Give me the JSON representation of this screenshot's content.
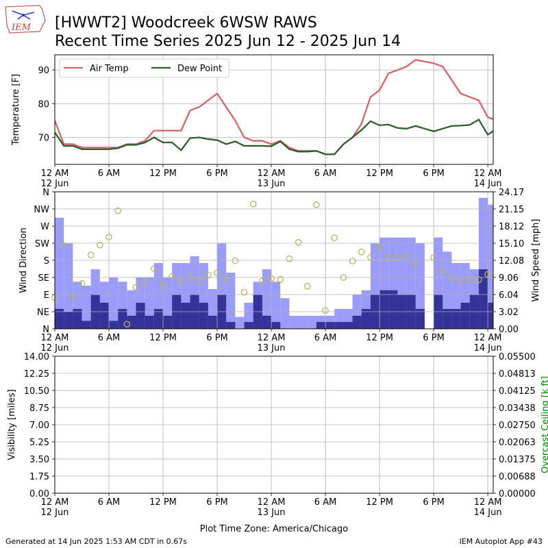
{
  "header": {
    "title_line1": "[HWWT2] Woodcreek 6WSW RAWS",
    "title_line2": "Recent Time Series 2025 Jun 12 - 2025 Jun 14",
    "logo_text": "IEM"
  },
  "footer": {
    "generated": "Generated at 14 Jun 2025 1:53 AM CDT in 0.67s",
    "app": "IEM Autoplot App #43",
    "timezone_label": "Plot Time Zone: America/Chicago"
  },
  "colors": {
    "air_temp": "#d9626b",
    "dew_point": "#2d5e2d",
    "wind_speed": "#9b9bfa",
    "wind_gust_base": "#33339a",
    "wind_dir": "#b5b56a",
    "ceiling_label": "#008000",
    "grid": "#b0b0b0"
  },
  "x_axis": {
    "ticks": [
      {
        "h": 0,
        "line1": "12 AM",
        "line2": "12 Jun"
      },
      {
        "h": 6,
        "line1": "6 AM",
        "line2": ""
      },
      {
        "h": 12,
        "line1": "12 PM",
        "line2": ""
      },
      {
        "h": 18,
        "line1": "6 PM",
        "line2": ""
      },
      {
        "h": 24,
        "line1": "12 AM",
        "line2": "13 Jun"
      },
      {
        "h": 30,
        "line1": "6 AM",
        "line2": ""
      },
      {
        "h": 36,
        "line1": "12 PM",
        "line2": ""
      },
      {
        "h": 42,
        "line1": "6 PM",
        "line2": ""
      },
      {
        "h": 48,
        "line1": "12 AM",
        "line2": "14 Jun"
      }
    ],
    "range_hours": [
      0,
      48.6
    ]
  },
  "chart_data": [
    {
      "type": "line",
      "ylabel": "Temperature [F]",
      "ylim": [
        62,
        94.5
      ],
      "yticks": [
        70,
        80,
        90
      ],
      "grid": true,
      "legend": "top-left",
      "x_unit": "hours since 12 Jun 12 AM",
      "x": [
        0,
        1,
        2,
        3,
        4,
        5,
        6,
        7,
        8,
        9,
        10,
        11,
        12,
        13,
        14,
        15,
        16,
        17,
        18,
        19,
        20,
        21,
        22,
        23,
        24,
        25,
        26,
        27,
        28,
        29,
        30,
        31,
        32,
        33,
        34,
        35,
        36,
        37,
        38,
        39,
        40,
        41,
        42,
        43,
        44,
        45,
        46,
        47,
        48,
        49
      ],
      "series": [
        {
          "name": "Air Temp",
          "values": [
            75,
            68,
            68,
            67,
            67,
            67,
            67,
            67,
            68,
            68,
            69,
            72,
            72,
            72,
            72,
            78,
            79,
            81,
            83,
            79,
            75,
            70,
            69,
            69,
            68,
            69,
            67,
            66,
            66,
            66,
            65,
            65,
            68,
            70,
            74,
            82,
            84,
            89,
            90,
            91,
            93,
            92.5,
            92,
            91,
            87,
            83,
            82,
            81,
            76,
            75
          ]
        },
        {
          "name": "Dew Point",
          "values": [
            71.5,
            67.5,
            67.5,
            66.5,
            66.5,
            66.5,
            66.5,
            66.8,
            67.8,
            67.8,
            68.5,
            70,
            68.5,
            68.5,
            66.2,
            69.8,
            70,
            69.5,
            69.2,
            68,
            68.8,
            67.5,
            67.5,
            67.5,
            67.4,
            68.8,
            66.5,
            65.8,
            65.8,
            66,
            65,
            65,
            68,
            70,
            72.2,
            74.8,
            73.6,
            73.8,
            72.8,
            72.6,
            73.4,
            72.6,
            71.8,
            72.6,
            73.4,
            73.5,
            73.7,
            75.3,
            70.8,
            72.6
          ]
        }
      ]
    },
    {
      "type": "bar",
      "ylabel": "Wind Direction",
      "ylabel_right": "Wind Speed [mph]",
      "grid": true,
      "dir_ticks": [
        "N",
        "NE",
        "E",
        "SE",
        "S",
        "SW",
        "W",
        "NW",
        "N"
      ],
      "dir_ylim": [
        0,
        360
      ],
      "speed_ylim": [
        0,
        24.17
      ],
      "speed_ticks": [
        "0.00",
        "3.02",
        "6.04",
        "9.06",
        "12.08",
        "15.10",
        "18.12",
        "21.15",
        "24.17"
      ],
      "x": [
        0,
        1,
        2,
        3,
        4,
        5,
        6,
        7,
        8,
        9,
        10,
        11,
        12,
        13,
        14,
        15,
        16,
        17,
        18,
        19,
        20,
        21,
        22,
        23,
        24,
        25,
        26,
        27,
        28,
        29,
        30,
        31,
        32,
        33,
        34,
        35,
        36,
        37,
        38,
        39,
        40,
        41,
        42,
        43,
        44,
        45,
        46,
        47,
        48
      ],
      "series": [
        {
          "name": "Wind Speed",
          "values": [
            19.6,
            15.1,
            8.3,
            7.6,
            10.5,
            8.3,
            9.1,
            8.3,
            6.8,
            9.1,
            9.1,
            11.6,
            9.1,
            11.6,
            11.6,
            12.8,
            11.6,
            7.0,
            15.1,
            9.9,
            2.1,
            4.6,
            8.3,
            10.5,
            8.3,
            5.4,
            2.3,
            2.3,
            2.3,
            2.3,
            2.3,
            3.5,
            3.5,
            6.0,
            6.8,
            15.1,
            16.1,
            16.1,
            16.1,
            16.1,
            15.1,
            0,
            16.1,
            13.6,
            11.6,
            11.6,
            10.5,
            23.1,
            21.9
          ]
        },
        {
          "name": "Wind Gust",
          "values": [
            3.5,
            3.0,
            3.5,
            1.4,
            6.0,
            4.6,
            1.4,
            3.5,
            2.3,
            4.6,
            2.3,
            3.5,
            2.3,
            6.0,
            4.6,
            6.0,
            4.6,
            2.3,
            6.0,
            1.2,
            0,
            1.2,
            6.0,
            2.3,
            1.2,
            0,
            0,
            0,
            0,
            1.2,
            1.2,
            1.2,
            1.2,
            2.3,
            3.5,
            6.0,
            6.8,
            6.8,
            6.0,
            6.0,
            3.5,
            0,
            6.0,
            3.5,
            3.5,
            4.6,
            6.0,
            10.5,
            4.6
          ]
        },
        {
          "name": "Wind Direction",
          "points": [
            [
              0,
              82
            ],
            [
              1,
              219
            ],
            [
              2,
              84
            ],
            [
              3,
              119
            ],
            [
              4,
              194
            ],
            [
              5,
              220
            ],
            [
              6,
              241
            ],
            [
              7,
              310
            ],
            [
              8,
              12
            ],
            [
              9,
              109
            ],
            [
              10,
              122
            ],
            [
              11,
              158
            ],
            [
              12,
              114
            ],
            [
              13,
              138
            ],
            [
              14,
              125
            ],
            [
              15,
              137
            ],
            [
              16,
              125
            ],
            [
              17,
              141
            ],
            [
              18,
              147
            ],
            [
              19,
              132
            ],
            [
              20,
              179
            ],
            [
              21,
              96
            ],
            [
              22,
              328
            ],
            [
              23,
              126
            ],
            [
              24,
              132
            ],
            [
              25,
              130
            ],
            [
              26,
              184
            ],
            [
              27,
              227
            ],
            [
              28,
              112
            ],
            [
              29,
              326
            ],
            [
              30,
              48
            ],
            [
              31,
              239
            ],
            [
              32,
              135
            ],
            [
              33,
              178
            ],
            [
              34,
              202
            ],
            [
              35,
              188
            ],
            [
              36,
              215
            ],
            [
              37,
              187
            ],
            [
              38,
              187
            ],
            [
              39,
              189
            ],
            [
              40,
              169
            ],
            [
              42,
              187
            ],
            [
              43,
              152
            ],
            [
              44,
              134
            ],
            [
              45,
              127
            ],
            [
              46,
              128
            ],
            [
              47,
              129
            ],
            [
              48,
              143
            ],
            [
              49,
              154
            ]
          ]
        }
      ]
    },
    {
      "type": "line",
      "ylabel": "Visibility [miles]",
      "ylabel_right": "Overcast Ceiling [k ft]",
      "grid": true,
      "ylim": [
        0,
        14
      ],
      "yticks": [
        "0.00",
        "1.75",
        "3.50",
        "5.25",
        "7.00",
        "8.75",
        "10.50",
        "12.25",
        "14.00"
      ],
      "ylim_right": [
        0,
        0.055
      ],
      "yticks_right": [
        "0.00000",
        "0.00688",
        "0.01375",
        "0.02063",
        "0.02750",
        "0.03438",
        "0.04125",
        "0.04813",
        "0.05500"
      ],
      "series": []
    }
  ]
}
